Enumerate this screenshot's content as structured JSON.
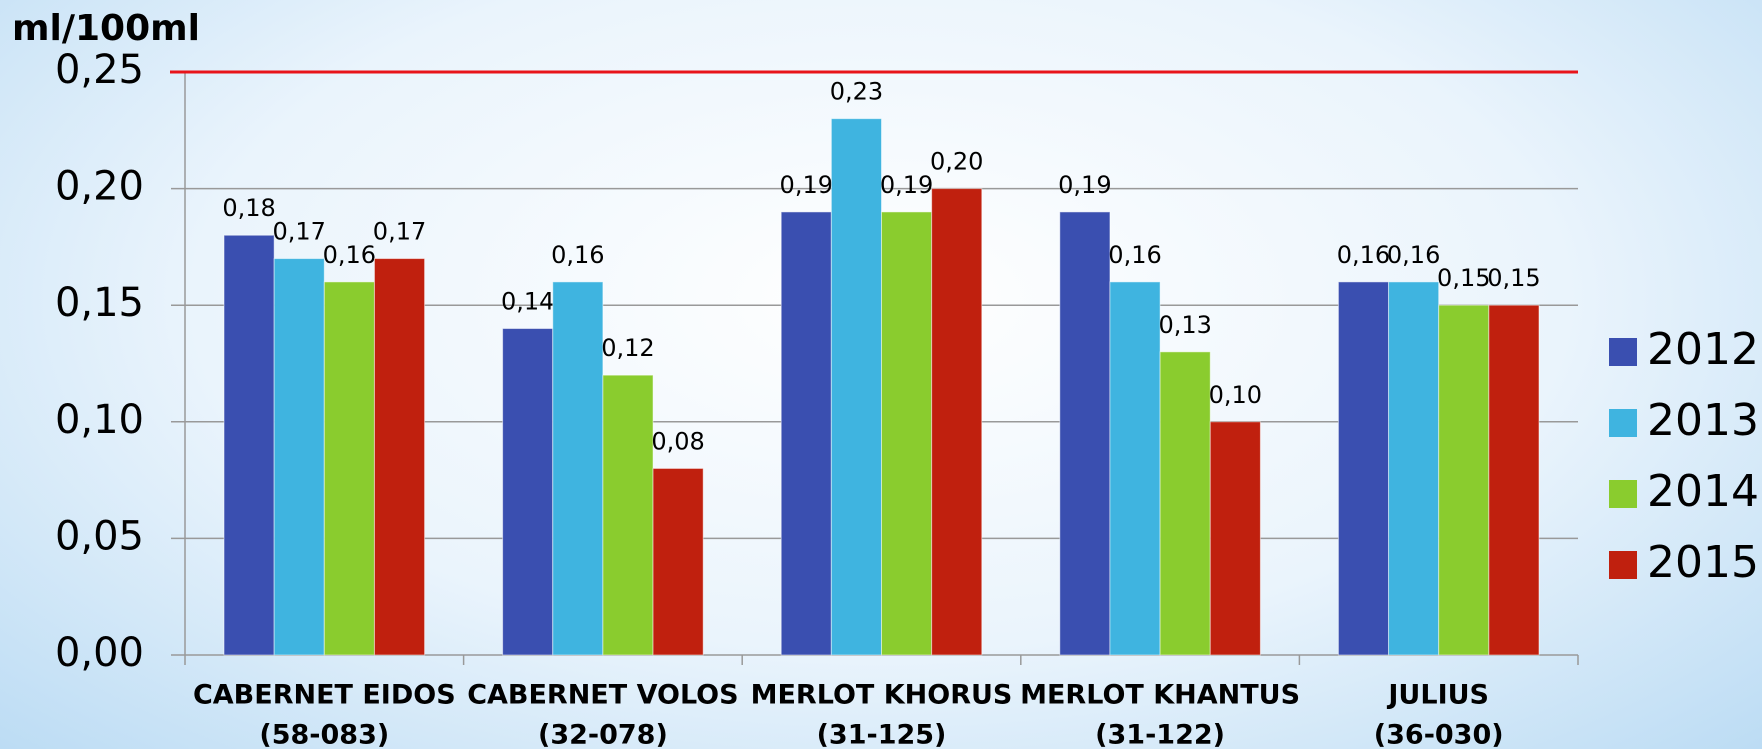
{
  "chart_data": {
    "type": "bar",
    "y_label": "ml/100ml",
    "categories": [
      [
        "CABERNET EIDOS",
        "(58-083)"
      ],
      [
        "CABERNET VOLOS",
        "(32-078)"
      ],
      [
        "MERLOT KHORUS",
        "(31-125)"
      ],
      [
        "MERLOT KHANTUS",
        "(31-122)"
      ],
      [
        "JULIUS",
        "(36-030)"
      ]
    ],
    "series": [
      {
        "name": "2012",
        "color": "#3a4fb0",
        "values": [
          0.18,
          0.14,
          0.19,
          0.19,
          0.16
        ],
        "value_labels": [
          "0,18",
          "0,14",
          "0,19",
          "0,19",
          "0,16"
        ]
      },
      {
        "name": "2013",
        "color": "#3fb4e0",
        "values": [
          0.17,
          0.16,
          0.23,
          0.16,
          0.16
        ],
        "value_labels": [
          "0,17",
          "0,16",
          "0,23",
          "0,16",
          "0,16"
        ]
      },
      {
        "name": "2014",
        "color": "#8acc2e",
        "values": [
          0.16,
          0.12,
          0.19,
          0.13,
          0.15
        ],
        "value_labels": [
          "0,16",
          "0,12",
          "0,19",
          "0,13",
          "0,15"
        ]
      },
      {
        "name": "2015",
        "color": "#c0200e",
        "values": [
          0.17,
          0.08,
          0.2,
          0.1,
          0.15
        ],
        "value_labels": [
          "0,17",
          "0,08",
          "0,20",
          "0,10",
          "0,15"
        ]
      }
    ],
    "ylim": [
      0,
      0.25
    ],
    "yticks": [
      {
        "value": 0,
        "label": "0,00"
      },
      {
        "value": 0.05,
        "label": "0,05"
      },
      {
        "value": 0.1,
        "label": "0,10"
      },
      {
        "value": 0.15,
        "label": "0,15"
      },
      {
        "value": 0.2,
        "label": "0,20"
      },
      {
        "value": 0.25,
        "label": "0,25"
      }
    ],
    "reference_line": {
      "value": 0.25,
      "color": "#e8141a"
    },
    "grid": true,
    "legend": "right"
  }
}
